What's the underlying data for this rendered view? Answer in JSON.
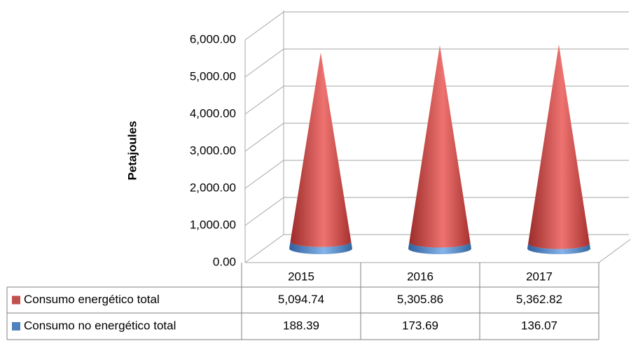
{
  "chart_data": {
    "type": "cone",
    "y_label": "Petajoules",
    "categories": [
      "2015",
      "2016",
      "2017"
    ],
    "stacked": true,
    "series": [
      {
        "name": "Consumo energético total",
        "color": "#c0504d",
        "values": [
          5094.74,
          5305.86,
          5362.82
        ],
        "value_labels": [
          "5,094.74",
          "5,305.86",
          "5,362.82"
        ]
      },
      {
        "name": "Consumo no energético total",
        "color": "#4f81bd",
        "values": [
          188.39,
          173.69,
          136.07
        ],
        "value_labels": [
          "188.39",
          "173.69",
          "136.07"
        ]
      }
    ],
    "ylim": [
      0,
      6000
    ],
    "yticks": [
      {
        "value": 0,
        "label": "0.00"
      },
      {
        "value": 1000,
        "label": "1,000.00"
      },
      {
        "value": 2000,
        "label": "2,000.00"
      },
      {
        "value": 3000,
        "label": "3,000.00"
      },
      {
        "value": 4000,
        "label": "4,000.00"
      },
      {
        "value": 5000,
        "label": "5,000.00"
      },
      {
        "value": 6000,
        "label": "6,000.00"
      }
    ],
    "grid": true
  }
}
